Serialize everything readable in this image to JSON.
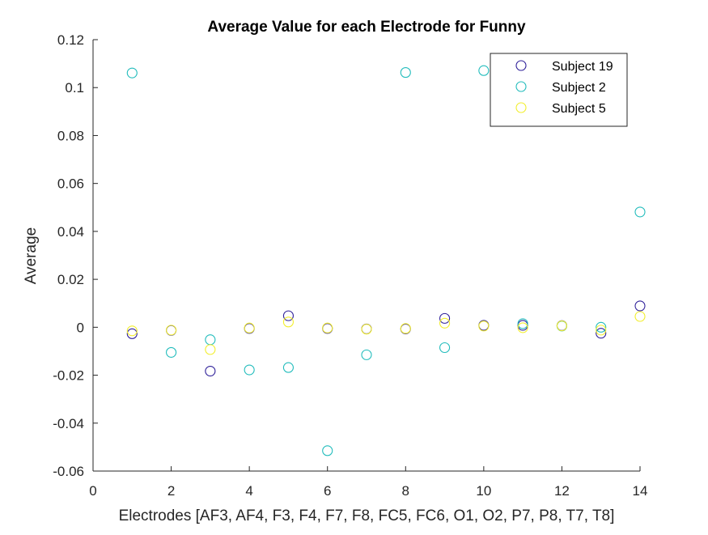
{
  "chart_data": {
    "type": "scatter",
    "title": "Average Value for each Electrode for Funny",
    "xlabel": "Electrodes [AF3, AF4, F3, F4, F7, F8, FC5, FC6, O1, O2, P7, P8, T7, T8]",
    "ylabel": "Average",
    "xlim": [
      0,
      14
    ],
    "ylim": [
      -0.06,
      0.12
    ],
    "xticks": [
      0,
      2,
      4,
      6,
      8,
      10,
      12,
      14
    ],
    "xtick_labels": [
      "0",
      "2",
      "4",
      "6",
      "8",
      "10",
      "12",
      "14"
    ],
    "yticks": [
      -0.06,
      -0.04,
      -0.02,
      0,
      0.02,
      0.04,
      0.06,
      0.08,
      0.1,
      0.12
    ],
    "ytick_labels": [
      "-0.06",
      "-0.04",
      "-0.02",
      "0",
      "0.02",
      "0.04",
      "0.06",
      "0.08",
      "0.1",
      "0.12"
    ],
    "grid": false,
    "legend_position": "top-right",
    "x": [
      1,
      2,
      3,
      4,
      5,
      6,
      7,
      8,
      9,
      10,
      11,
      12,
      13,
      14
    ],
    "series": [
      {
        "name": "Subject 19",
        "color": "#2e1f99",
        "marker": "open-circle",
        "values": [
          -0.0027,
          -0.0013,
          -0.0183,
          -0.0005,
          0.0048,
          -0.0005,
          -0.0007,
          -0.0007,
          0.0037,
          0.0008,
          0.0008,
          0.0007,
          -0.0025,
          0.0089
        ]
      },
      {
        "name": "Subject 2",
        "color": "#21bcbc",
        "marker": "open-circle",
        "values": [
          0.1061,
          -0.0105,
          -0.0052,
          -0.0178,
          -0.0168,
          -0.0515,
          -0.0115,
          0.1063,
          -0.0085,
          0.1071,
          0.0015,
          0.0005,
          0.0,
          0.0481
        ]
      },
      {
        "name": "Subject 5",
        "color": "#f2ee2c",
        "marker": "open-circle",
        "values": [
          -0.0015,
          -0.0012,
          -0.0093,
          -0.0003,
          0.0022,
          -0.0003,
          -0.0008,
          -0.0005,
          0.0017,
          0.0005,
          -0.0002,
          0.0006,
          -0.0012,
          0.0045
        ]
      }
    ]
  }
}
